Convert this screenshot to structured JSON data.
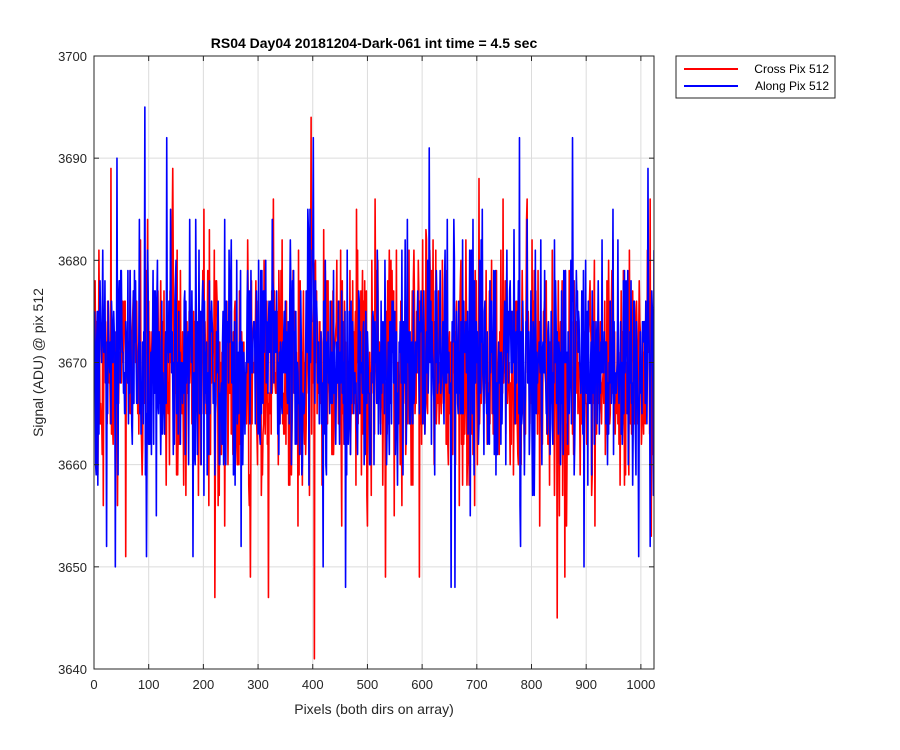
{
  "chart_data": {
    "type": "line",
    "title": "RS04 Day04 20181204-Dark-061 int time = 4.5 sec",
    "xlabel": "Pixels (both dirs on array)",
    "ylabel": "Signal (ADU) @ pix 512",
    "xlim": [
      0,
      1024
    ],
    "ylim": [
      3640,
      3700
    ],
    "xticks": [
      0,
      100,
      200,
      300,
      400,
      500,
      600,
      700,
      800,
      900,
      1000
    ],
    "yticks": [
      3640,
      3650,
      3660,
      3670,
      3680,
      3690,
      3700
    ],
    "grid": true,
    "legend_position": "outside-top-right",
    "series": [
      {
        "name": "Cross Pix 512",
        "color": "#ff0000",
        "n_points": 1024,
        "mean": 3669,
        "typical_range": [
          3657,
          3683
        ],
        "notable_points": [
          [
            8,
            3681
          ],
          [
            30,
            3689
          ],
          [
            57,
            3651
          ],
          [
            143,
            3689
          ],
          [
            220,
            3647
          ],
          [
            285,
            3649
          ],
          [
            318,
            3647
          ],
          [
            396,
            3694
          ],
          [
            402,
            3641
          ],
          [
            532,
            3649
          ],
          [
            594,
            3649
          ],
          [
            703,
            3688
          ],
          [
            846,
            3645
          ],
          [
            860,
            3649
          ],
          [
            1018,
            3653
          ]
        ]
      },
      {
        "name": "Along Pix 512",
        "color": "#0000ff",
        "n_points": 1024,
        "mean": 3670,
        "typical_range": [
          3658,
          3682
        ],
        "notable_points": [
          [
            22,
            3652
          ],
          [
            38,
            3650
          ],
          [
            41,
            3690
          ],
          [
            92,
            3695
          ],
          [
            95,
            3651
          ],
          [
            132,
            3692
          ],
          [
            180,
            3651
          ],
          [
            200,
            3657
          ],
          [
            268,
            3652
          ],
          [
            400,
            3692
          ],
          [
            418,
            3650
          ],
          [
            459,
            3648
          ],
          [
            612,
            3691
          ],
          [
            652,
            3648
          ],
          [
            659,
            3648
          ],
          [
            777,
            3692
          ],
          [
            779,
            3652
          ],
          [
            874,
            3692
          ],
          [
            895,
            3650
          ],
          [
            995,
            3651
          ],
          [
            1012,
            3689
          ],
          [
            1016,
            3652
          ]
        ]
      }
    ]
  }
}
